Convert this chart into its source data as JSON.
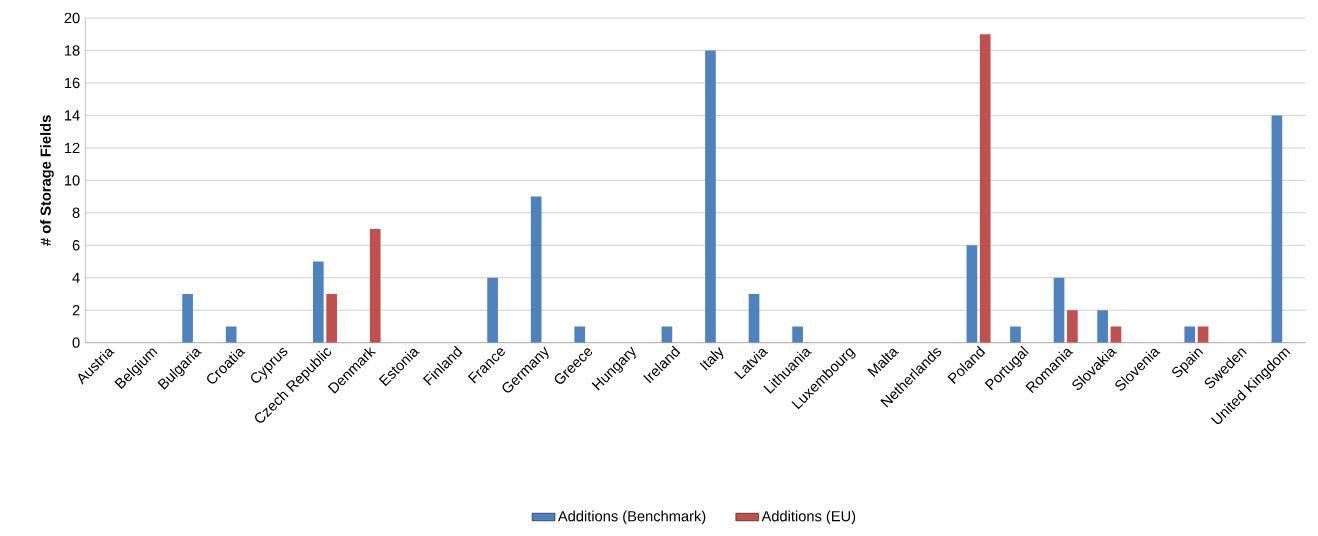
{
  "chart_data": {
    "type": "bar",
    "ylabel": "# of Storage Fields",
    "categories": [
      "Austria",
      "Belgium",
      "Bulgaria",
      "Croatia",
      "Cyprus",
      "Czech Republic",
      "Denmark",
      "Estonia",
      "Finland",
      "France",
      "Germany",
      "Greece",
      "Hungary",
      "Ireland",
      "Italy",
      "Latvia",
      "Lithuania",
      "Luxembourg",
      "Malta",
      "Netherlands",
      "Poland",
      "Portugal",
      "Romania",
      "Slovakia",
      "Slovenia",
      "Spain",
      "Sweden",
      "United Kingdom"
    ],
    "series": [
      {
        "name": "Additions (Benchmark)",
        "color": "#4f81bd",
        "values": [
          0,
          0,
          3,
          1,
          0,
          5,
          0,
          0,
          0,
          4,
          9,
          1,
          0,
          1,
          18,
          3,
          1,
          0,
          0,
          0,
          6,
          1,
          4,
          2,
          0,
          1,
          0,
          14
        ]
      },
      {
        "name": "Additions (EU)",
        "color": "#c0504d",
        "values": [
          0,
          0,
          0,
          0,
          0,
          3,
          7,
          0,
          0,
          0,
          0,
          0,
          0,
          0,
          0,
          0,
          0,
          0,
          0,
          0,
          19,
          0,
          2,
          1,
          0,
          1,
          0,
          0
        ]
      }
    ],
    "ylim": [
      0,
      20
    ],
    "yticks": [
      0,
      2,
      4,
      6,
      8,
      10,
      12,
      14,
      16,
      18,
      20
    ],
    "grid": "y",
    "legend": "bottom"
  }
}
